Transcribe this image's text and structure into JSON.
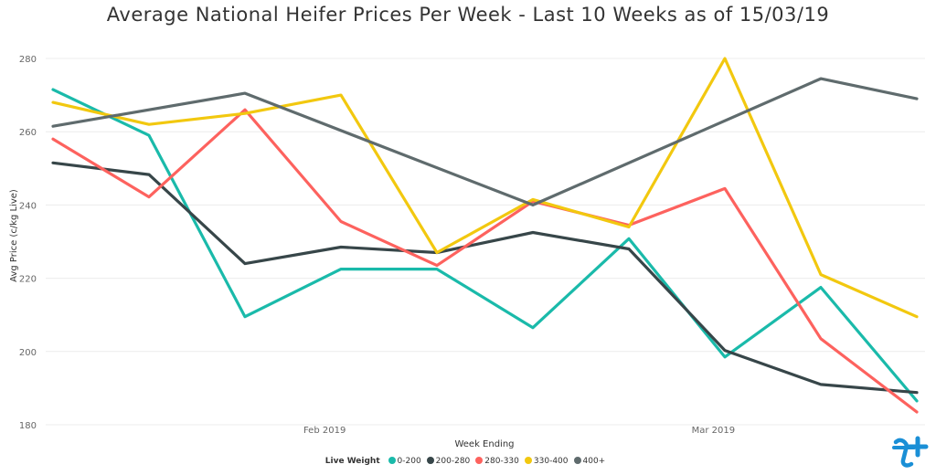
{
  "title": "Average National Heifer Prices Per Week - Last 10 Weeks as of 15/03/19",
  "legend": {
    "title": "Live Weight"
  },
  "chart_data": {
    "type": "line",
    "title": "Average National Heifer Prices Per Week - Last 10 Weeks as of 15/03/19",
    "xlabel": "Week Ending",
    "ylabel": "Avg Price (c/kg Live)",
    "x_tick_labels": [
      "Feb 2019",
      "Mar 2019"
    ],
    "y_ticks": [
      180,
      200,
      220,
      240,
      260,
      280
    ],
    "ylim": [
      180,
      283
    ],
    "grid": true,
    "legend_position": "bottom",
    "series": [
      {
        "name": "0-200",
        "color": "#1ABAAA",
        "values": [
          271.5,
          259.0,
          209.5,
          222.5,
          222.5,
          206.5,
          230.8,
          198.5,
          217.5,
          186.5
        ]
      },
      {
        "name": "200-280",
        "color": "#374649",
        "values": [
          251.5,
          248.3,
          224.0,
          228.5,
          227.0,
          232.5,
          228.0,
          200.3,
          191.0,
          188.8
        ]
      },
      {
        "name": "280-330",
        "color": "#FD625E",
        "values": [
          258.0,
          242.2,
          266.0,
          235.5,
          223.5,
          241.0,
          234.5,
          244.5,
          203.5,
          183.5
        ]
      },
      {
        "name": "330-400",
        "color": "#F2C80F",
        "values": [
          268.0,
          262.0,
          265.0,
          270.0,
          227.0,
          241.5,
          234.0,
          280.0,
          221.0,
          209.5
        ]
      },
      {
        "name": "400+",
        "color": "#5F6B6D",
        "values": [
          261.5,
          null,
          270.5,
          null,
          null,
          240.0,
          null,
          null,
          274.5,
          269.0
        ]
      }
    ]
  }
}
